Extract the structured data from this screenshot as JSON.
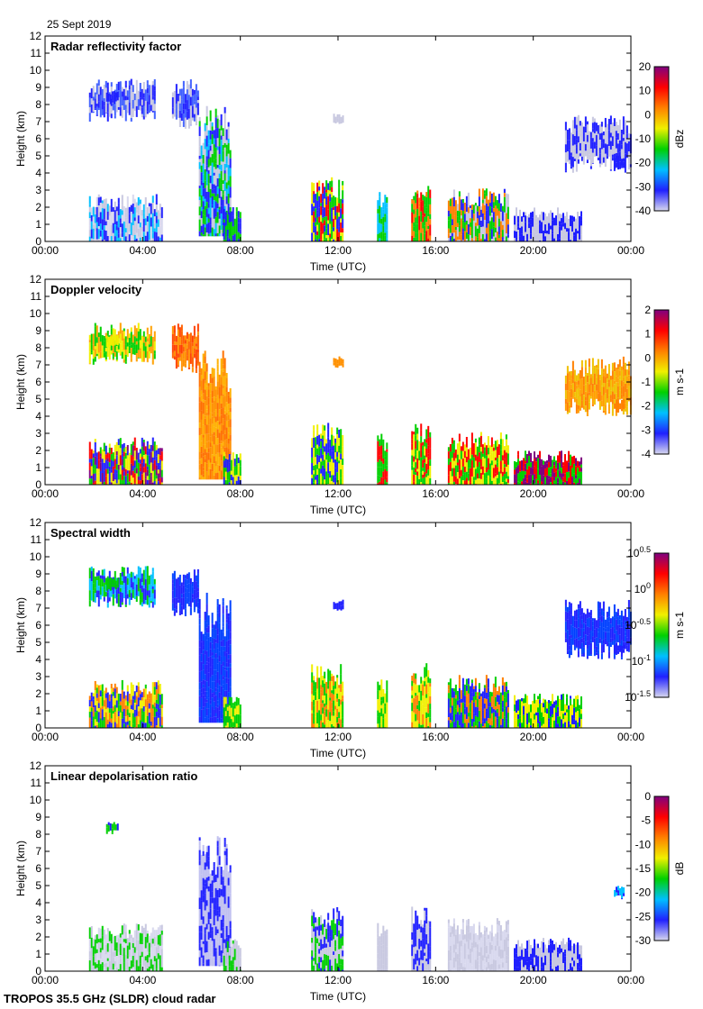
{
  "date_label": "25 Sept 2019",
  "footer": "TROPOS 35.5 GHz (SLDR) cloud radar",
  "chart_data": [
    {
      "type": "heatmap",
      "title": "Radar reflectivity factor",
      "xlabel": "Time (UTC)",
      "ylabel": "Height (km)",
      "xlim": [
        0,
        24
      ],
      "ylim": [
        0,
        12
      ],
      "xticks": [
        "00:00",
        "04:00",
        "08:00",
        "12:00",
        "16:00",
        "20:00",
        "00:00"
      ],
      "yticks": [
        "0",
        "1",
        "2",
        "3",
        "4",
        "5",
        "6",
        "7",
        "8",
        "9",
        "10",
        "11",
        "12"
      ],
      "colorbar": {
        "label": "dBz",
        "ticks": [
          "20",
          "10",
          "0",
          "-10",
          "-20",
          "-30",
          "-40"
        ]
      },
      "colormap": [
        "#d8d8ee",
        "#2020ff",
        "#00c0ff",
        "#00d000",
        "#f0f000",
        "#ff8000",
        "#ff0000",
        "#800080"
      ]
    },
    {
      "type": "heatmap",
      "title": "Doppler velocity",
      "xlabel": "Time (UTC)",
      "ylabel": "Height (km)",
      "xlim": [
        0,
        24
      ],
      "ylim": [
        0,
        12
      ],
      "xticks": [
        "00:00",
        "04:00",
        "08:00",
        "12:00",
        "16:00",
        "20:00",
        "00:00"
      ],
      "yticks": [
        "0",
        "1",
        "2",
        "3",
        "4",
        "5",
        "6",
        "7",
        "8",
        "9",
        "10",
        "11",
        "12"
      ],
      "colorbar": {
        "label": "m s-1",
        "ticks": [
          "2",
          "1",
          "0",
          "-1",
          "-2",
          "-3",
          "-4"
        ]
      },
      "colormap": [
        "#d8d8ee",
        "#2020ff",
        "#00c0ff",
        "#00d000",
        "#f0f000",
        "#ff8000",
        "#ff0000",
        "#800080"
      ]
    },
    {
      "type": "heatmap",
      "title": "Spectral width",
      "xlabel": "Time (UTC)",
      "ylabel": "Height (km)",
      "xlim": [
        0,
        24
      ],
      "ylim": [
        0,
        12
      ],
      "xticks": [
        "00:00",
        "04:00",
        "08:00",
        "12:00",
        "16:00",
        "20:00",
        "00:00"
      ],
      "yticks": [
        "0",
        "1",
        "2",
        "3",
        "4",
        "5",
        "6",
        "7",
        "8",
        "9",
        "10",
        "11",
        "12"
      ],
      "colorbar": {
        "label": "m s-1",
        "ticks": [
          "10^0.5",
          "10^0",
          "10^-0.5",
          "10^-1",
          "10^-1.5"
        ]
      },
      "colormap": [
        "#d8d8ee",
        "#2020ff",
        "#00c0ff",
        "#00d000",
        "#f0f000",
        "#ff8000",
        "#ff0000",
        "#800080"
      ]
    },
    {
      "type": "heatmap",
      "title": "Linear depolarisation ratio",
      "xlabel": "Time (UTC)",
      "ylabel": "Height (km)",
      "xlim": [
        0,
        24
      ],
      "ylim": [
        0,
        12
      ],
      "xticks": [
        "00:00",
        "04:00",
        "08:00",
        "12:00",
        "16:00",
        "20:00",
        "00:00"
      ],
      "yticks": [
        "0",
        "1",
        "2",
        "3",
        "4",
        "5",
        "6",
        "7",
        "8",
        "9",
        "10",
        "11",
        "12"
      ],
      "colorbar": {
        "label": "dB",
        "ticks": [
          "0",
          "-5",
          "-10",
          "-15",
          "-20",
          "-25",
          "-30"
        ]
      },
      "colormap": [
        "#d8d8ee",
        "#2020ff",
        "#00c0ff",
        "#00d000",
        "#f0f000",
        "#ff8000",
        "#ff0000",
        "#800080"
      ]
    }
  ],
  "echo_regions": [
    {
      "t": [
        1.8,
        4.5
      ],
      "h": [
        7.0,
        9.5
      ],
      "c": [
        [
          "#2020ff",
          "#4060ff",
          "#c8c8e0"
        ],
        [
          "#f0f000",
          "#ffa000",
          "#00d000"
        ],
        [
          "#2020ff",
          "#00d000",
          "#00c0ff"
        ],
        [
          "#ffffff"
        ]
      ]
    },
    {
      "t": [
        2.5,
        3.0
      ],
      "h": [
        8.0,
        8.8
      ],
      "c": [
        [
          "#2020ff"
        ],
        [
          "#f0f000"
        ],
        [
          "#00d000"
        ],
        [
          "#2020ff",
          "#00d000"
        ]
      ]
    },
    {
      "t": [
        5.2,
        6.3
      ],
      "h": [
        6.5,
        9.5
      ],
      "c": [
        [
          "#2020ff",
          "#4060ff",
          "#c8c8e0"
        ],
        [
          "#ff6000",
          "#ff4000",
          "#ff9000"
        ],
        [
          "#2020ff",
          "#0040ff"
        ],
        [
          "#ffffff"
        ]
      ]
    },
    {
      "t": [
        6.3,
        7.6
      ],
      "h": [
        0.3,
        8.0
      ],
      "c": [
        [
          "#2020ff",
          "#00c0ff",
          "#00d000",
          "#c8c8e0"
        ],
        [
          "#ff9000",
          "#ffb000",
          "#ff7000"
        ],
        [
          "#2020ff",
          "#0040ff"
        ],
        [
          "#c0c0f0",
          "#2020ff"
        ]
      ]
    },
    {
      "t": [
        1.8,
        4.8
      ],
      "h": [
        0,
        2.8
      ],
      "c": [
        [
          "#2020ff",
          "#c8c8e0",
          "#00c0ff",
          "#d8d8ee"
        ],
        [
          "#800080",
          "#ff0000",
          "#f0f000",
          "#00d000",
          "#2020ff"
        ],
        [
          "#f0f000",
          "#00d000",
          "#ff8000",
          "#2020ff"
        ],
        [
          "#00d000",
          "#d8d8ee",
          "#c8c8e0"
        ]
      ]
    },
    {
      "t": [
        7.3,
        8.0
      ],
      "h": [
        0,
        2.0
      ],
      "c": [
        [
          "#00d000",
          "#2020ff"
        ],
        [
          "#00d000",
          "#f0f000",
          "#2020ff"
        ],
        [
          "#00d000",
          "#f0f000"
        ],
        [
          "#c8c8e0",
          "#00d000"
        ]
      ]
    },
    {
      "t": [
        10.9,
        12.2
      ],
      "h": [
        0,
        3.8
      ],
      "c": [
        [
          "#00d000",
          "#ff0000",
          "#f0f000",
          "#2020ff"
        ],
        [
          "#00d000",
          "#f0f000",
          "#2020ff"
        ],
        [
          "#ff8000",
          "#f0f000",
          "#00d000"
        ],
        [
          "#2020ff",
          "#c8c8e0",
          "#00d000"
        ]
      ]
    },
    {
      "t": [
        11.8,
        12.2
      ],
      "h": [
        6.8,
        7.5
      ],
      "c": [
        [
          "#c8c8e0"
        ],
        [
          "#ff9000"
        ],
        [
          "#2020ff"
        ],
        [
          "#ffffff"
        ]
      ]
    },
    {
      "t": [
        13.6,
        14.0
      ],
      "h": [
        0,
        3.0
      ],
      "c": [
        [
          "#00c0ff",
          "#00d000"
        ],
        [
          "#ff0000",
          "#00d000"
        ],
        [
          "#00d000",
          "#f0f000"
        ],
        [
          "#c8c8e0"
        ]
      ]
    },
    {
      "t": [
        15.0,
        15.8
      ],
      "h": [
        0,
        3.8
      ],
      "c": [
        [
          "#ff0000",
          "#ff8000",
          "#00d000"
        ],
        [
          "#ff0000",
          "#00d000",
          "#f0f000"
        ],
        [
          "#ff8000",
          "#f0f000",
          "#00d000"
        ],
        [
          "#c8c8e0",
          "#2020ff"
        ]
      ]
    },
    {
      "t": [
        16.5,
        19.0
      ],
      "h": [
        0,
        3.1
      ],
      "c": [
        [
          "#00d000",
          "#ff8000",
          "#2020ff",
          "#c8c8e0"
        ],
        [
          "#f0f000",
          "#00d000",
          "#ff0000"
        ],
        [
          "#00d000",
          "#2020ff",
          "#ff8000"
        ],
        [
          "#c8c8e0",
          "#d8d8ee"
        ]
      ]
    },
    {
      "t": [
        19.2,
        22.0
      ],
      "h": [
        0,
        2.0
      ],
      "c": [
        [
          "#c8c8e0",
          "#2020ff"
        ],
        [
          "#ff0000",
          "#800080",
          "#00d000"
        ],
        [
          "#00d000",
          "#f0f000",
          "#2020ff"
        ],
        [
          "#2020ff",
          "#c8c8e0"
        ]
      ]
    },
    {
      "t": [
        21.3,
        24.0
      ],
      "h": [
        4.0,
        7.5
      ],
      "c": [
        [
          "#2020ff",
          "#c8c8e0"
        ],
        [
          "#ffa000",
          "#ff8000",
          "#f0c000"
        ],
        [
          "#2020ff",
          "#0040ff"
        ],
        [
          "#ffffff"
        ]
      ]
    },
    {
      "t": [
        23.3,
        23.7
      ],
      "h": [
        4.2,
        5.0
      ],
      "c": [
        [
          "#2020ff"
        ],
        [
          "#ff8000"
        ],
        [
          "#2020ff"
        ],
        [
          "#2020ff",
          "#00c0ff"
        ]
      ]
    }
  ]
}
